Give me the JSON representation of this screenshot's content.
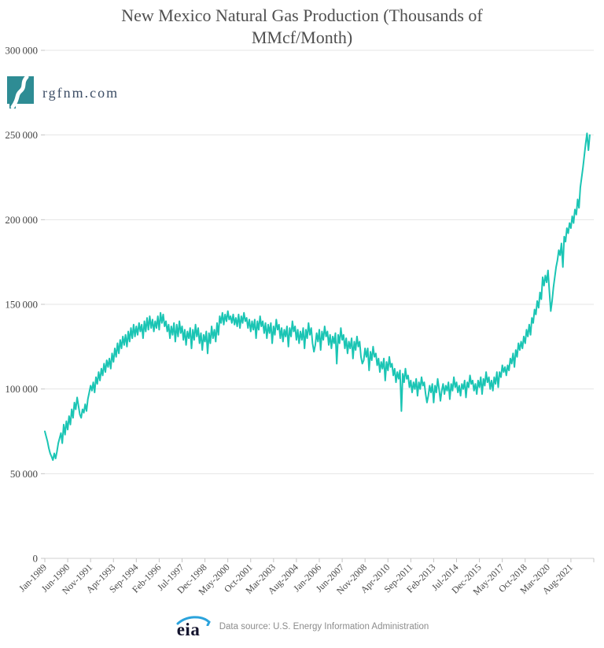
{
  "branding": {
    "logo_text": "rgfnm.com",
    "logo_shape": "new-mexico-state-with-river",
    "logo_color": "#2e8c94"
  },
  "footer": {
    "eia_label": "eia",
    "source_text": "Data source: U.S. Energy Information Administration",
    "eia_arc_color": "#2ba3dc"
  },
  "chart_data": {
    "type": "line",
    "title": "New Mexico Natural Gas Production (Thousands of MMcf/Month)",
    "title_line1": "New Mexico Natural Gas Production (Thousands of",
    "title_line2": "MMcf/Month)",
    "xlabel": "",
    "ylabel": "",
    "grid": "horizontal",
    "legend": "none",
    "colors": {
      "line": "#1bc5b4",
      "grid": "#e4e4e4",
      "axis": "#d2d2d2",
      "tick": "#c4c4c4"
    },
    "y_axis": {
      "min": 0,
      "max": 300000,
      "ticks": [
        {
          "value": 0,
          "label": "0"
        },
        {
          "value": 50000,
          "label": "50 000"
        },
        {
          "value": 100000,
          "label": "100 000"
        },
        {
          "value": 150000,
          "label": "150 000"
        },
        {
          "value": 200000,
          "label": "200 000"
        },
        {
          "value": 250000,
          "label": "250 000"
        },
        {
          "value": 300000,
          "label": "300 000"
        }
      ]
    },
    "x_axis": {
      "start_month": "Jan-1989",
      "end_month_axis": "Jan-2023",
      "total_months": 408,
      "tick_step_months": 17,
      "labels": [
        {
          "month": 0,
          "label": "Jan-1989"
        },
        {
          "month": 17,
          "label": "Jun-1990"
        },
        {
          "month": 34,
          "label": "Nov-1991"
        },
        {
          "month": 51,
          "label": "Apr-1993"
        },
        {
          "month": 68,
          "label": "Sep-1994"
        },
        {
          "month": 85,
          "label": "Feb-1996"
        },
        {
          "month": 102,
          "label": "Jul-1997"
        },
        {
          "month": 119,
          "label": "Dec-1998"
        },
        {
          "month": 136,
          "label": "May-2000"
        },
        {
          "month": 153,
          "label": "Oct-2001"
        },
        {
          "month": 170,
          "label": "Mar-2003"
        },
        {
          "month": 187,
          "label": "Aug-2004"
        },
        {
          "month": 204,
          "label": "Jan-2006"
        },
        {
          "month": 221,
          "label": "Jun-2007"
        },
        {
          "month": 238,
          "label": "Nov-2008"
        },
        {
          "month": 255,
          "label": "Apr-2010"
        },
        {
          "month": 272,
          "label": "Sep-2011"
        },
        {
          "month": 289,
          "label": "Feb-2013"
        },
        {
          "month": 306,
          "label": "Jul-2014"
        },
        {
          "month": 323,
          "label": "Dec-2015"
        },
        {
          "month": 340,
          "label": "May-2017"
        },
        {
          "month": 357,
          "label": "Oct-2018"
        },
        {
          "month": 374,
          "label": "Mar-2020"
        },
        {
          "month": 391,
          "label": "Aug-2021"
        }
      ]
    },
    "series": [
      {
        "name": "New Mexico natural gas production",
        "unit": "thousand MMcf per month",
        "first_point": "Jan-1989",
        "last_point": "Oct-2022",
        "values": [
          75000,
          72000,
          69000,
          65000,
          62000,
          60000,
          58000,
          62000,
          59000,
          63000,
          68000,
          71000,
          74000,
          68000,
          79000,
          73000,
          81000,
          76000,
          84000,
          79000,
          88000,
          83000,
          92000,
          88000,
          95000,
          90000,
          85000,
          83000,
          88000,
          86000,
          91000,
          87000,
          94000,
          98000,
          102000,
          99000,
          104000,
          98000,
          107000,
          103000,
          110000,
          105000,
          112000,
          108000,
          115000,
          110000,
          117000,
          113000,
          118000,
          112000,
          121000,
          116000,
          124000,
          119000,
          127000,
          121000,
          129000,
          124000,
          131000,
          126000,
          132000,
          125000,
          134000,
          128000,
          136000,
          130000,
          138000,
          131000,
          137000,
          132000,
          139000,
          134000,
          138000,
          130000,
          140000,
          134000,
          142000,
          135000,
          143000,
          136000,
          141000,
          134000,
          140000,
          136000,
          143000,
          135000,
          145000,
          139000,
          144000,
          137000,
          140000,
          134000,
          138000,
          130000,
          137000,
          132000,
          139000,
          128000,
          138000,
          131000,
          140000,
          133000,
          137000,
          129000,
          135000,
          126000,
          134000,
          130000,
          136000,
          124000,
          135000,
          129000,
          138000,
          131000,
          136000,
          127000,
          133000,
          123000,
          132000,
          128000,
          134000,
          121000,
          133000,
          127000,
          137000,
          130000,
          135000,
          128000,
          139000,
          132000,
          143000,
          139000,
          145000,
          138000,
          144000,
          140000,
          146000,
          141000,
          143000,
          139000,
          144000,
          138000,
          142000,
          137000,
          144000,
          136000,
          143000,
          139000,
          145000,
          140000,
          142000,
          136000,
          141000,
          134000,
          140000,
          135000,
          141000,
          130000,
          140000,
          135000,
          143000,
          137000,
          140000,
          133000,
          139000,
          130000,
          138000,
          133000,
          139000,
          127000,
          137000,
          132000,
          141000,
          135000,
          138000,
          130000,
          136000,
          128000,
          135000,
          131000,
          137000,
          125000,
          136000,
          131000,
          140000,
          134000,
          137000,
          129000,
          135000,
          127000,
          134000,
          129000,
          136000,
          124000,
          135000,
          130000,
          139000,
          132000,
          136000,
          127000,
          122000,
          126000,
          133000,
          128000,
          135000,
          123000,
          134000,
          129000,
          137000,
          131000,
          134000,
          126000,
          132000,
          124000,
          131000,
          127000,
          133000,
          115000,
          132000,
          127000,
          136000,
          129000,
          132000,
          124000,
          130000,
          121000,
          128000,
          124000,
          130000,
          118000,
          128000,
          123000,
          131000,
          125000,
          128000,
          119000,
          115000,
          117000,
          124000,
          119000,
          124000,
          111000,
          122000,
          117000,
          125000,
          119000,
          121000,
          114000,
          118000,
          110000,
          116000,
          112000,
          118000,
          105000,
          116000,
          111000,
          119000,
          113000,
          115000,
          108000,
          112000,
          104000,
          110000,
          106000,
          111000,
          87000,
          109000,
          104000,
          112000,
          106000,
          108000,
          101000,
          105000,
          98000,
          104000,
          100000,
          106000,
          96000,
          104000,
          100000,
          107000,
          102000,
          104000,
          97000,
          92000,
          96000,
          102000,
          98000,
          103000,
          92000,
          102000,
          98000,
          106000,
          100000,
          93000,
          99000,
          103000,
          97000,
          102000,
          99000,
          104000,
          94000,
          103000,
          99000,
          107000,
          101000,
          104000,
          98000,
          102000,
          96000,
          103000,
          100000,
          105000,
          95000,
          104000,
          101000,
          108000,
          103000,
          105000,
          99000,
          103000,
          97000,
          105000,
          101000,
          107000,
          97000,
          106000,
          102000,
          110000,
          104000,
          107000,
          100000,
          105000,
          99000,
          107000,
          103000,
          110000,
          101000,
          110000,
          107000,
          114000,
          110000,
          113000,
          108000,
          114000,
          111000,
          118000,
          115000,
          121000,
          113000,
          123000,
          119000,
          127000,
          123000,
          128000,
          124000,
          131000,
          127000,
          135000,
          131000,
          138000,
          132000,
          142000,
          139000,
          147000,
          144000,
          152000,
          148000,
          157000,
          153000,
          166000,
          161000,
          167000,
          163000,
          170000,
          158000,
          146000,
          152000,
          160000,
          166000,
          172000,
          176000,
          182000,
          179000,
          186000,
          172000,
          190000,
          187000,
          195000,
          192000,
          198000,
          195000,
          202000,
          198000,
          206000,
          203000,
          212000,
          207000,
          219000,
          225000,
          231000,
          238000,
          245000,
          251000,
          241000,
          250000
        ]
      }
    ]
  }
}
